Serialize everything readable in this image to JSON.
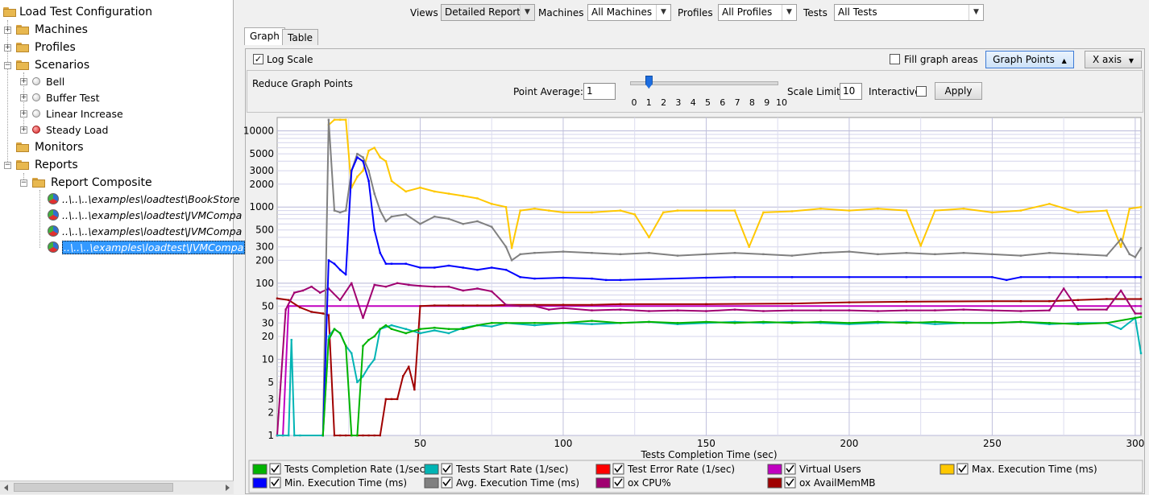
{
  "tree": {
    "root": "Load Test Configuration",
    "machines": "Machines",
    "profiles": "Profiles",
    "scenarios": "Scenarios",
    "scenario_items": [
      "Bell",
      "Buffer Test",
      "Linear Increase",
      "Steady Load"
    ],
    "monitors": "Monitors",
    "reports": "Reports",
    "report_composite": "Report Composite",
    "report_files": [
      "..\\..\\..\\examples\\loadtest\\BookStore",
      "..\\..\\..\\examples\\loadtest\\JVMCompa",
      "..\\..\\..\\examples\\loadtest\\JVMCompa",
      "..\\..\\..\\examples\\loadtest\\JVMCompa"
    ]
  },
  "toolbar": {
    "views_label": "Views",
    "views_value": "Detailed Report",
    "machines_label": "Machines",
    "machines_value": "All Machines",
    "profiles_label": "Profiles",
    "profiles_value": "All Profiles",
    "tests_label": "Tests",
    "tests_value": "All Tests"
  },
  "tabs": {
    "graph": "Graph",
    "table": "Table"
  },
  "controls": {
    "log_scale": "Log Scale",
    "fill_areas": "Fill graph areas",
    "graph_points": "Graph Points",
    "x_axis": "X axis"
  },
  "reduce": {
    "title": "Reduce Graph Points",
    "point_average_label": "Point Average:",
    "point_average_value": "1",
    "slider_ticks": [
      "0",
      "1",
      "2",
      "3",
      "4",
      "5",
      "6",
      "7",
      "8",
      "9",
      "10"
    ],
    "slider_value": 1,
    "scale_limit_label": "Scale Limit",
    "scale_limit_value": "10",
    "interactive_label": "Interactive",
    "apply_label": "Apply"
  },
  "colors": {
    "completion": "#00b400",
    "start": "#00b4b4",
    "error": "#ff0000",
    "vusers": "#c000c0",
    "maxexec": "#ffc800",
    "minexec": "#0000ff",
    "avgexec": "#808080",
    "cpu": "#a00070",
    "mem": "#a00000"
  },
  "legend": {
    "completion": "Tests Completion Rate (1/sec)",
    "start": "Tests Start Rate (1/sec)",
    "error": "Test Error Rate (1/sec)",
    "vusers": "Virtual Users",
    "maxexec": "Max. Execution Time (ms)",
    "minexec": "Min. Execution Time (ms)",
    "avgexec": "Avg. Execution Time (ms)",
    "cpu": "ox CPU%",
    "mem": "ox AvailMemMB"
  },
  "chart_data": {
    "type": "line",
    "scale": "log",
    "xlabel": "Tests Completion Time (sec)",
    "ylabel": "",
    "xlim": [
      0,
      302
    ],
    "ylim": [
      1,
      15000
    ],
    "x_ticks": [
      "50",
      "100",
      "150",
      "200",
      "250",
      "300"
    ],
    "y_ticks": [
      "10000",
      "5000",
      "3000",
      "2000",
      "1000",
      "500",
      "300",
      "200",
      "100",
      "50",
      "30",
      "20",
      "10",
      "5",
      "3",
      "2",
      "1"
    ],
    "series": [
      {
        "key": "vusers",
        "name": "Virtual Users",
        "x": [
          0,
          2,
          4,
          300,
          302
        ],
        "y": [
          1,
          1,
          50,
          50,
          50
        ]
      },
      {
        "key": "mem",
        "name": "ox AvailMemMB",
        "x": [
          0,
          4,
          8,
          12,
          16,
          18,
          20,
          22,
          24,
          26,
          28,
          30,
          32,
          34,
          36,
          38,
          40,
          42,
          44,
          46,
          48,
          50,
          55,
          60,
          65,
          70,
          75,
          80,
          90,
          100,
          110,
          120,
          150,
          180,
          200,
          220,
          250,
          260,
          270,
          280,
          290,
          302
        ],
        "y": [
          63,
          60,
          48,
          42,
          40,
          38,
          1,
          1,
          1,
          1,
          1,
          1,
          1,
          1,
          1,
          3,
          3,
          3,
          6,
          8,
          4,
          50,
          51,
          51,
          51,
          51,
          51,
          52,
          52,
          52,
          52,
          53,
          53,
          54,
          56,
          57,
          58,
          58,
          58,
          60,
          62,
          62
        ]
      },
      {
        "key": "cpu",
        "name": "ox CPU%",
        "x": [
          0,
          3,
          6,
          9,
          12,
          15,
          18,
          22,
          26,
          30,
          34,
          38,
          42,
          46,
          50,
          55,
          60,
          65,
          70,
          75,
          80,
          85,
          90,
          95,
          100,
          110,
          120,
          130,
          140,
          150,
          160,
          170,
          180,
          190,
          200,
          210,
          220,
          230,
          240,
          250,
          260,
          270,
          275,
          280,
          290,
          295,
          300,
          302
        ],
        "y": [
          1,
          45,
          75,
          80,
          90,
          75,
          85,
          60,
          100,
          35,
          95,
          90,
          100,
          95,
          92,
          90,
          90,
          80,
          85,
          78,
          52,
          50,
          50,
          45,
          47,
          44,
          45,
          43,
          44,
          43,
          45,
          43,
          44,
          44,
          44,
          43,
          44,
          44,
          45,
          44,
          43,
          44,
          85,
          45,
          45,
          80,
          40,
          40
        ]
      },
      {
        "key": "maxexec",
        "name": "Max. Execution Time (ms)",
        "x": [
          18,
          20,
          22,
          24,
          26,
          28,
          30,
          32,
          34,
          36,
          38,
          40,
          45,
          50,
          55,
          60,
          65,
          70,
          75,
          80,
          82,
          85,
          90,
          95,
          100,
          110,
          120,
          125,
          130,
          135,
          140,
          150,
          160,
          165,
          170,
          180,
          190,
          200,
          210,
          220,
          225,
          230,
          240,
          250,
          260,
          270,
          280,
          290,
          295,
          298,
          302
        ],
        "y": [
          12000,
          14000,
          14000,
          14000,
          1800,
          2500,
          3000,
          5500,
          6000,
          4500,
          4000,
          2200,
          1600,
          1800,
          1600,
          1500,
          1400,
          1300,
          1100,
          1000,
          290,
          900,
          950,
          900,
          850,
          850,
          900,
          800,
          400,
          850,
          900,
          900,
          900,
          300,
          850,
          880,
          950,
          900,
          950,
          900,
          310,
          900,
          950,
          850,
          900,
          1100,
          850,
          900,
          300,
          950,
          1000
        ]
      },
      {
        "key": "avgexec",
        "name": "Avg. Execution Time (ms)",
        "x": [
          16,
          18,
          20,
          22,
          24,
          26,
          28,
          30,
          32,
          34,
          36,
          38,
          40,
          45,
          50,
          55,
          60,
          65,
          70,
          75,
          80,
          82,
          85,
          90,
          100,
          110,
          120,
          130,
          140,
          150,
          160,
          170,
          180,
          190,
          200,
          210,
          220,
          230,
          240,
          250,
          260,
          270,
          280,
          290,
          295,
          298,
          300,
          302
        ],
        "y": [
          1,
          14000,
          900,
          850,
          900,
          3000,
          5000,
          4500,
          3000,
          1500,
          900,
          650,
          750,
          800,
          600,
          750,
          700,
          600,
          650,
          550,
          300,
          200,
          240,
          250,
          260,
          250,
          240,
          250,
          230,
          240,
          250,
          240,
          230,
          250,
          260,
          240,
          250,
          240,
          250,
          240,
          230,
          250,
          240,
          230,
          380,
          240,
          220,
          290
        ]
      },
      {
        "key": "minexec",
        "name": "Min. Execution Time (ms)",
        "x": [
          16,
          18,
          20,
          22,
          24,
          26,
          28,
          30,
          32,
          34,
          36,
          38,
          40,
          45,
          50,
          55,
          60,
          65,
          70,
          75,
          80,
          85,
          90,
          100,
          110,
          115,
          120,
          150,
          160,
          180,
          200,
          220,
          250,
          255,
          260,
          270,
          280,
          290,
          300,
          302
        ],
        "y": [
          1,
          200,
          180,
          150,
          130,
          3000,
          4500,
          4000,
          2200,
          500,
          250,
          180,
          180,
          180,
          160,
          160,
          170,
          160,
          150,
          160,
          150,
          120,
          115,
          118,
          115,
          110,
          110,
          118,
          120,
          120,
          120,
          120,
          120,
          110,
          120,
          120,
          120,
          120,
          120,
          120
        ]
      },
      {
        "key": "start",
        "name": "Tests Start Rate (1/sec)",
        "x": [
          0,
          2,
          4,
          5,
          6,
          8,
          16,
          18,
          20,
          22,
          24,
          26,
          28,
          30,
          32,
          34,
          36,
          40,
          45,
          50,
          55,
          60,
          65,
          70,
          75,
          80,
          90,
          100,
          110,
          120,
          130,
          140,
          150,
          160,
          170,
          180,
          190,
          200,
          210,
          220,
          230,
          240,
          250,
          260,
          270,
          280,
          290,
          295,
          300,
          302
        ],
        "y": [
          1,
          1,
          1,
          18,
          1,
          1,
          1,
          20,
          25,
          22,
          15,
          12,
          5,
          6,
          8,
          10,
          25,
          28,
          25,
          22,
          24,
          22,
          26,
          28,
          27,
          30,
          28,
          30,
          29,
          30,
          31,
          29,
          30,
          31,
          30,
          31,
          30,
          29,
          30,
          31,
          29,
          30,
          30,
          31,
          29,
          30,
          30,
          25,
          35,
          12
        ]
      },
      {
        "key": "completion",
        "name": "Tests Completion Rate (1/sec)",
        "x": [
          16,
          18,
          20,
          22,
          24,
          26,
          28,
          30,
          32,
          34,
          36,
          38,
          40,
          45,
          50,
          55,
          60,
          65,
          70,
          75,
          80,
          90,
          100,
          110,
          120,
          130,
          140,
          150,
          160,
          170,
          180,
          190,
          200,
          210,
          220,
          230,
          240,
          250,
          260,
          270,
          280,
          290,
          300,
          302
        ],
        "y": [
          1,
          18,
          25,
          22,
          15,
          1,
          1,
          15,
          18,
          20,
          25,
          28,
          25,
          22,
          25,
          26,
          25,
          25,
          28,
          30,
          30,
          30,
          30,
          32,
          30,
          31,
          30,
          31,
          30,
          31,
          30,
          31,
          30,
          31,
          30,
          31,
          30,
          30,
          31,
          30,
          29,
          30,
          35,
          36
        ]
      }
    ]
  }
}
